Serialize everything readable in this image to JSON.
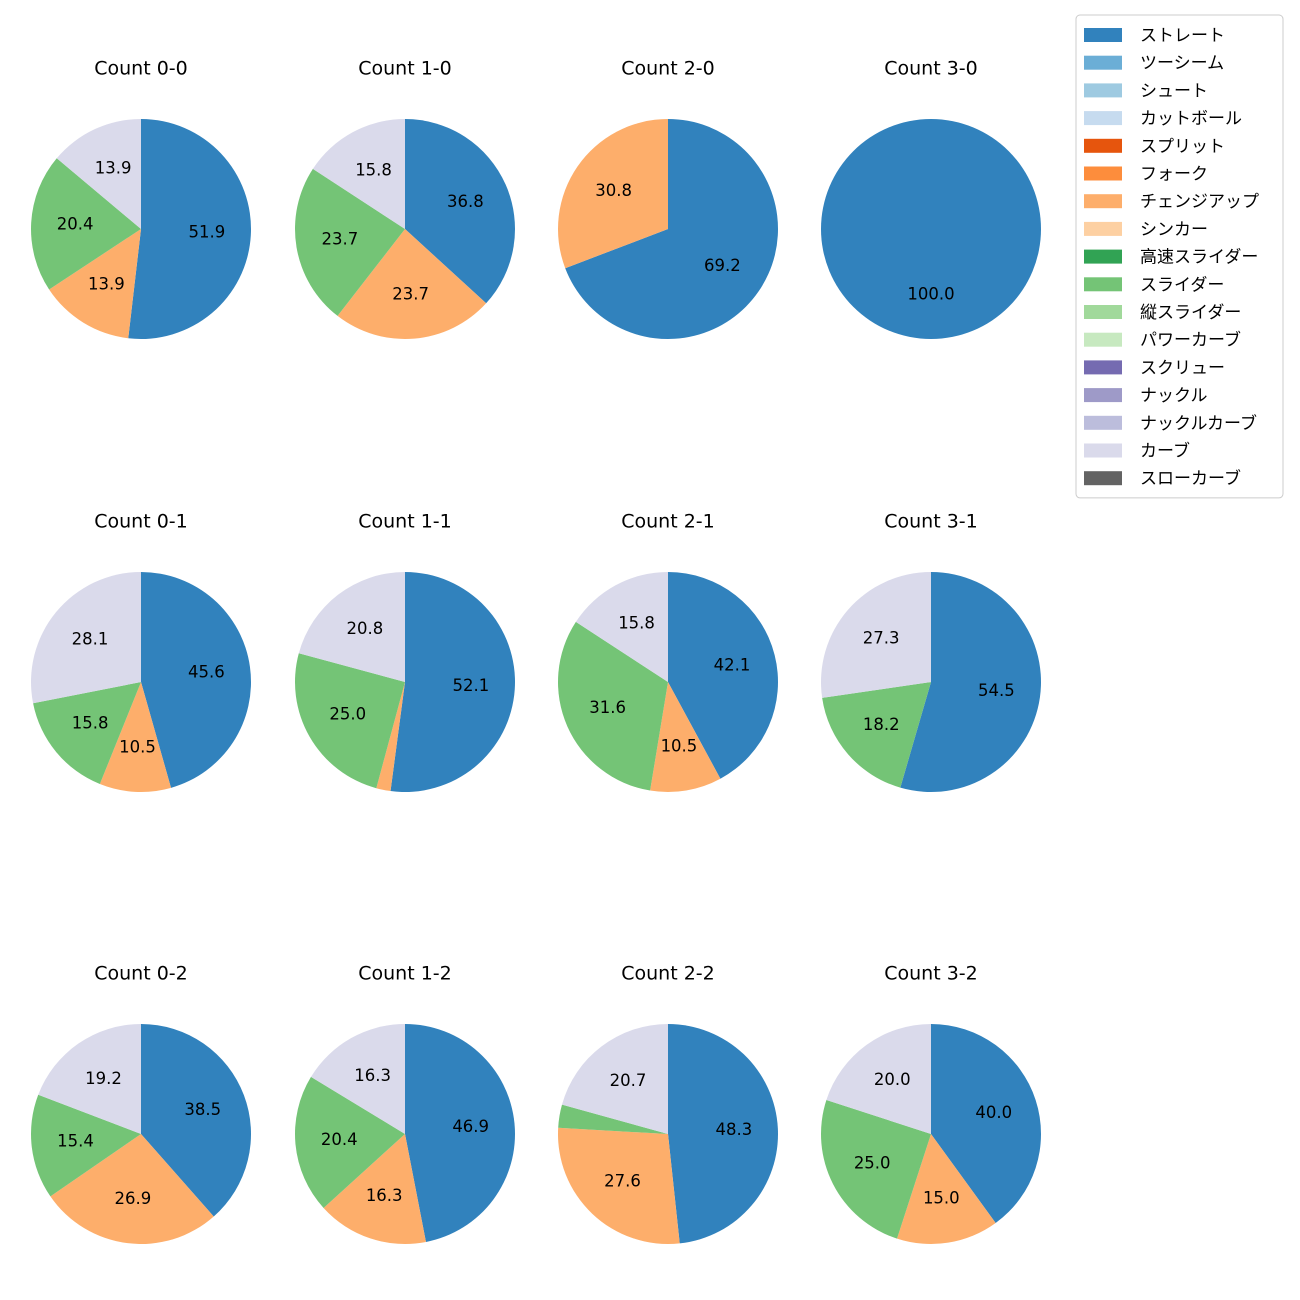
{
  "colors": {
    "ストレート": "#3182bd",
    "ツーシーム": "#6baed6",
    "シュート": "#9ecae1",
    "カットボール": "#c6dbef",
    "スプリット": "#e6550d",
    "フォーク": "#fd8d3c",
    "チェンジアップ": "#fdae6b",
    "シンカー": "#fdd0a2",
    "高速スライダー": "#31a354",
    "スライダー": "#74c476",
    "縦スライダー": "#a1d99b",
    "パワーカーブ": "#c7e9c0",
    "スクリュー": "#756bb1",
    "ナックル": "#9e9ac8",
    "ナックルカーブ": "#bcbddc",
    "カーブ": "#dadaeb",
    "スローカーブ": "#636363"
  },
  "legend": {
    "items": [
      "ストレート",
      "ツーシーム",
      "シュート",
      "カットボール",
      "スプリット",
      "フォーク",
      "チェンジアップ",
      "シンカー",
      "高速スライダー",
      "スライダー",
      "縦スライダー",
      "パワーカーブ",
      "スクリュー",
      "ナックル",
      "ナックルカーブ",
      "カーブ",
      "スローカーブ"
    ]
  },
  "chart_data": [
    {
      "type": "pie",
      "title": "Count 0-0",
      "slices": [
        {
          "label": "ストレート",
          "value": 51.9,
          "text": "51.9"
        },
        {
          "label": "チェンジアップ",
          "value": 13.9,
          "text": "13.9"
        },
        {
          "label": "スライダー",
          "value": 20.4,
          "text": "20.4"
        },
        {
          "label": "カーブ",
          "value": 13.9,
          "text": "13.9"
        }
      ]
    },
    {
      "type": "pie",
      "title": "Count 1-0",
      "slices": [
        {
          "label": "ストレート",
          "value": 36.8,
          "text": "36.8"
        },
        {
          "label": "チェンジアップ",
          "value": 23.7,
          "text": "23.7"
        },
        {
          "label": "スライダー",
          "value": 23.7,
          "text": "23.7"
        },
        {
          "label": "カーブ",
          "value": 15.8,
          "text": "15.8"
        }
      ]
    },
    {
      "type": "pie",
      "title": "Count 2-0",
      "slices": [
        {
          "label": "ストレート",
          "value": 69.2,
          "text": "69.2"
        },
        {
          "label": "チェンジアップ",
          "value": 30.8,
          "text": "30.8"
        }
      ]
    },
    {
      "type": "pie",
      "title": "Count 3-0",
      "slices": [
        {
          "label": "ストレート",
          "value": 100.0,
          "text": "100.0"
        }
      ]
    },
    {
      "type": "pie",
      "title": "Count 0-1",
      "slices": [
        {
          "label": "ストレート",
          "value": 45.6,
          "text": "45.6"
        },
        {
          "label": "チェンジアップ",
          "value": 10.5,
          "text": "10.5"
        },
        {
          "label": "スライダー",
          "value": 15.8,
          "text": "15.8"
        },
        {
          "label": "カーブ",
          "value": 28.1,
          "text": "28.1"
        }
      ]
    },
    {
      "type": "pie",
      "title": "Count 1-1",
      "slices": [
        {
          "label": "ストレート",
          "value": 52.1,
          "text": "52.1"
        },
        {
          "label": "チェンジアップ",
          "value": 2.1,
          "text": ""
        },
        {
          "label": "スライダー",
          "value": 25.0,
          "text": "25.0"
        },
        {
          "label": "カーブ",
          "value": 20.8,
          "text": "20.8"
        }
      ]
    },
    {
      "type": "pie",
      "title": "Count 2-1",
      "slices": [
        {
          "label": "ストレート",
          "value": 42.1,
          "text": "42.1"
        },
        {
          "label": "チェンジアップ",
          "value": 10.5,
          "text": "10.5"
        },
        {
          "label": "スライダー",
          "value": 31.6,
          "text": "31.6"
        },
        {
          "label": "カーブ",
          "value": 15.8,
          "text": "15.8"
        }
      ]
    },
    {
      "type": "pie",
      "title": "Count 3-1",
      "slices": [
        {
          "label": "ストレート",
          "value": 54.5,
          "text": "54.5"
        },
        {
          "label": "スライダー",
          "value": 18.2,
          "text": "18.2"
        },
        {
          "label": "カーブ",
          "value": 27.3,
          "text": "27.3"
        }
      ]
    },
    {
      "type": "pie",
      "title": "Count 0-2",
      "slices": [
        {
          "label": "ストレート",
          "value": 38.5,
          "text": "38.5"
        },
        {
          "label": "チェンジアップ",
          "value": 26.9,
          "text": "26.9"
        },
        {
          "label": "スライダー",
          "value": 15.4,
          "text": "15.4"
        },
        {
          "label": "カーブ",
          "value": 19.2,
          "text": "19.2"
        }
      ]
    },
    {
      "type": "pie",
      "title": "Count 1-2",
      "slices": [
        {
          "label": "ストレート",
          "value": 46.9,
          "text": "46.9"
        },
        {
          "label": "チェンジアップ",
          "value": 16.3,
          "text": "16.3"
        },
        {
          "label": "スライダー",
          "value": 20.4,
          "text": "20.4"
        },
        {
          "label": "カーブ",
          "value": 16.3,
          "text": "16.3"
        }
      ]
    },
    {
      "type": "pie",
      "title": "Count 2-2",
      "slices": [
        {
          "label": "ストレート",
          "value": 48.3,
          "text": "48.3"
        },
        {
          "label": "チェンジアップ",
          "value": 27.6,
          "text": "27.6"
        },
        {
          "label": "スライダー",
          "value": 3.4,
          "text": ""
        },
        {
          "label": "カーブ",
          "value": 20.7,
          "text": "20.7"
        }
      ]
    },
    {
      "type": "pie",
      "title": "Count 3-2",
      "slices": [
        {
          "label": "ストレート",
          "value": 40.0,
          "text": "40.0"
        },
        {
          "label": "チェンジアップ",
          "value": 15.0,
          "text": "15.0"
        },
        {
          "label": "スライダー",
          "value": 25.0,
          "text": "25.0"
        },
        {
          "label": "カーブ",
          "value": 20.0,
          "text": "20.0"
        }
      ]
    }
  ]
}
